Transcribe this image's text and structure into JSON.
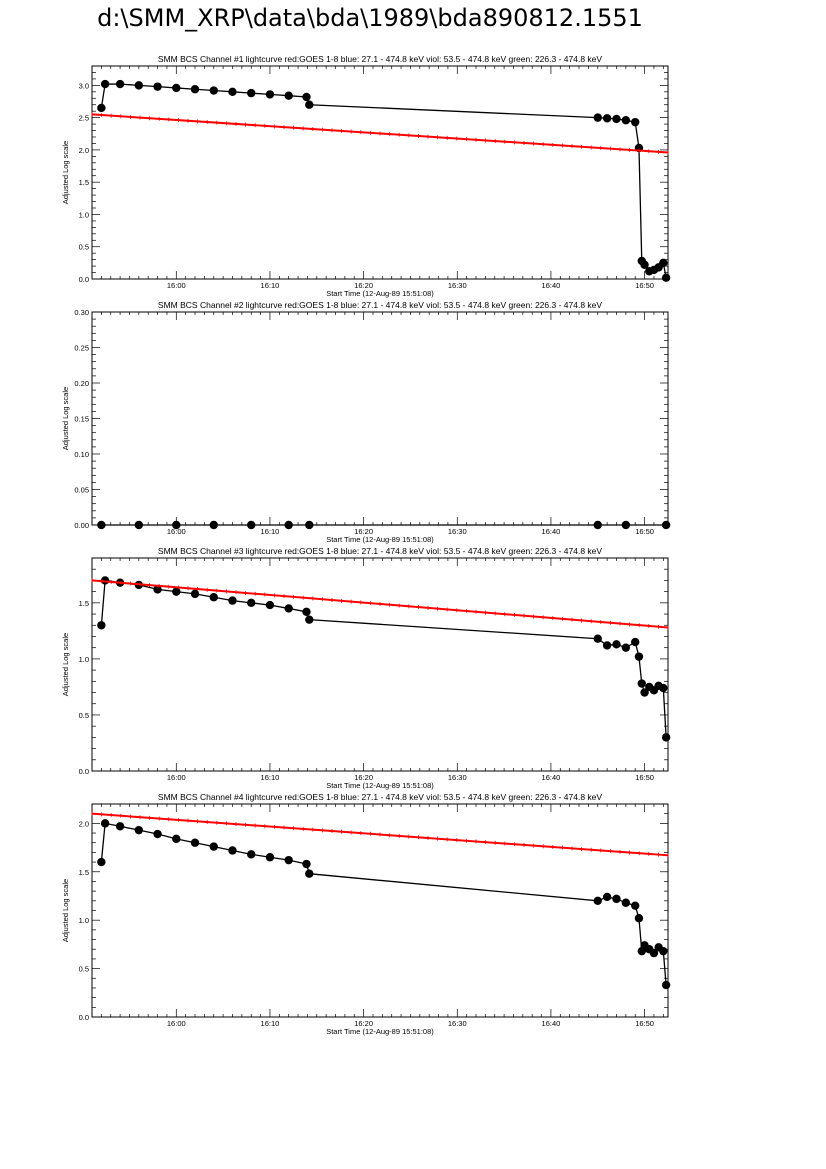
{
  "page": {
    "title": "d:\\SMM_XRP\\data\\bda\\1989\\bda890812.1551"
  },
  "chart_data": [
    {
      "type": "line",
      "title": "SMM BCS Channel #1 lightcurve  red:GOES 1-8  blue: 27.1 - 474.8 keV  viol: 53.5 - 474.8 keV  green: 226.3 - 474.8 keV",
      "xlabel": "Start Time (12-Aug-89 15:51:08)",
      "ylabel": "Adjusted Log scale",
      "xlim": [
        -9,
        52.5
      ],
      "ylim": [
        0,
        3.3
      ],
      "x_ticks": [
        "16:00",
        "16:10",
        "16:20",
        "16:30",
        "16:40",
        "16:50"
      ],
      "y_ticks": [
        "0.0",
        "0.5",
        "1.0",
        "1.5",
        "2.0",
        "2.5",
        "3.0"
      ],
      "y_tick_values": [
        0,
        0.5,
        1.0,
        1.5,
        2.0,
        2.5,
        3.0
      ],
      "series": [
        {
          "color": "#000000",
          "style": "dots",
          "x": [
            -8,
            -7.6,
            -6,
            -4,
            -2,
            0,
            2,
            4,
            6,
            8,
            10,
            12,
            13.9,
            14.2,
            45,
            46,
            47,
            48,
            49,
            49.4,
            49.7,
            50,
            50.5,
            51,
            51.5,
            52,
            52.3
          ],
          "y": [
            2.65,
            3.02,
            3.02,
            3.0,
            2.98,
            2.96,
            2.94,
            2.92,
            2.9,
            2.88,
            2.86,
            2.84,
            2.82,
            2.7,
            2.5,
            2.49,
            2.48,
            2.46,
            2.43,
            2.03,
            0.28,
            0.22,
            0.12,
            0.14,
            0.18,
            0.25,
            0.02
          ]
        },
        {
          "color": "#ff0000",
          "style": "line",
          "x": [
            -9,
            52.5
          ],
          "y": [
            2.55,
            1.96
          ]
        }
      ]
    },
    {
      "type": "line",
      "title": "SMM BCS Channel #2 lightcurve  red:GOES 1-8  blue: 27.1 - 474.8 keV  viol: 53.5 - 474.8 keV  green: 226.3 - 474.8 keV",
      "xlabel": "Start Time (12-Aug-89 15:51:08)",
      "ylabel": "Adjusted Log scale",
      "xlim": [
        -9,
        52.5
      ],
      "ylim": [
        0,
        0.3
      ],
      "x_ticks": [
        "16:00",
        "16:10",
        "16:20",
        "16:30",
        "16:40",
        "16:50"
      ],
      "y_ticks": [
        "0.00",
        "0.05",
        "0.10",
        "0.15",
        "0.20",
        "0.25",
        "0.30"
      ],
      "y_tick_values": [
        0,
        0.05,
        0.1,
        0.15,
        0.2,
        0.25,
        0.3
      ],
      "series": [
        {
          "color": "#000000",
          "style": "dots",
          "x": [
            -8,
            -4,
            0,
            4,
            8,
            12,
            14.2,
            45,
            48,
            52.3
          ],
          "y": [
            0,
            0,
            0,
            0,
            0,
            0,
            0,
            0,
            0,
            0
          ]
        }
      ]
    },
    {
      "type": "line",
      "title": "SMM BCS Channel #3 lightcurve  red:GOES 1-8  blue: 27.1 - 474.8 keV  viol: 53.5 - 474.8 keV  green: 226.3 - 474.8 keV",
      "xlabel": "Start Time (12-Aug-89 15:51:08)",
      "ylabel": "Adjusted Log scale",
      "xlim": [
        -9,
        52.5
      ],
      "ylim": [
        0,
        1.9
      ],
      "x_ticks": [
        "16:00",
        "16:10",
        "16:20",
        "16:30",
        "16:40",
        "16:50"
      ],
      "y_ticks": [
        "0.0",
        "0.5",
        "1.0",
        "1.5"
      ],
      "y_tick_values": [
        0,
        0.5,
        1.0,
        1.5
      ],
      "series": [
        {
          "color": "#000000",
          "style": "dots",
          "x": [
            -8,
            -7.6,
            -6,
            -4,
            -2,
            0,
            2,
            4,
            6,
            8,
            10,
            12,
            13.9,
            14.2,
            45,
            46,
            47,
            48,
            49,
            49.4,
            49.7,
            50,
            50.5,
            51,
            51.5,
            52,
            52.3
          ],
          "y": [
            1.3,
            1.7,
            1.68,
            1.66,
            1.62,
            1.6,
            1.58,
            1.55,
            1.52,
            1.5,
            1.48,
            1.45,
            1.42,
            1.35,
            1.18,
            1.12,
            1.13,
            1.1,
            1.15,
            1.02,
            0.78,
            0.7,
            0.75,
            0.72,
            0.76,
            0.74,
            0.3
          ]
        },
        {
          "color": "#ff0000",
          "style": "line",
          "x": [
            -9,
            52.5
          ],
          "y": [
            1.7,
            1.28
          ]
        }
      ]
    },
    {
      "type": "line",
      "title": "SMM BCS Channel #4 lightcurve  red:GOES 1-8  blue: 27.1 - 474.8 keV  viol: 53.5 - 474.8 keV  green: 226.3 - 474.8 keV",
      "xlabel": "Start Time (12-Aug-89 15:51:08)",
      "ylabel": "Adjusted Log scale",
      "xlim": [
        -9,
        52.5
      ],
      "ylim": [
        0,
        2.2
      ],
      "x_ticks": [
        "16:00",
        "16:10",
        "16:20",
        "16:30",
        "16:40",
        "16:50"
      ],
      "y_ticks": [
        "0.0",
        "0.5",
        "1.0",
        "1.5",
        "2.0"
      ],
      "y_tick_values": [
        0,
        0.5,
        1.0,
        1.5,
        2.0
      ],
      "series": [
        {
          "color": "#000000",
          "style": "dots",
          "x": [
            -8,
            -7.6,
            -6,
            -4,
            -2,
            0,
            2,
            4,
            6,
            8,
            10,
            12,
            13.9,
            14.2,
            45,
            46,
            47,
            48,
            49,
            49.4,
            49.7,
            50,
            50.5,
            51,
            51.5,
            52,
            52.3
          ],
          "y": [
            1.6,
            2.0,
            1.97,
            1.93,
            1.89,
            1.84,
            1.8,
            1.76,
            1.72,
            1.68,
            1.65,
            1.62,
            1.58,
            1.48,
            1.2,
            1.24,
            1.22,
            1.18,
            1.15,
            1.02,
            0.68,
            0.74,
            0.7,
            0.66,
            0.72,
            0.68,
            0.33
          ]
        },
        {
          "color": "#ff0000",
          "style": "line",
          "x": [
            -9,
            52.5
          ],
          "y": [
            2.1,
            1.67
          ]
        }
      ]
    }
  ]
}
